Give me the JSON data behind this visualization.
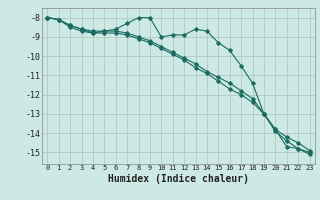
{
  "xlabel": "Humidex (Indice chaleur)",
  "ylabel": "",
  "xlim": [
    -0.5,
    23.5
  ],
  "ylim": [
    -15.6,
    -7.5
  ],
  "yticks": [
    -8,
    -9,
    -10,
    -11,
    -12,
    -13,
    -14,
    -15
  ],
  "xticks": [
    0,
    1,
    2,
    3,
    4,
    5,
    6,
    7,
    8,
    9,
    10,
    11,
    12,
    13,
    14,
    15,
    16,
    17,
    18,
    19,
    20,
    21,
    22,
    23
  ],
  "bg_color": "#cce9e4",
  "grid_color": "#b0c8c4",
  "line_color": "#1a6b60",
  "line1_x": [
    0,
    1,
    2,
    3,
    4,
    5,
    6,
    7,
    8,
    9,
    10,
    11,
    12,
    13,
    14,
    15,
    16,
    17,
    18,
    19,
    20,
    21,
    22,
    23
  ],
  "line1_y": [
    -8.0,
    -8.1,
    -8.5,
    -8.7,
    -8.8,
    -8.7,
    -8.6,
    -8.3,
    -8.0,
    -8.0,
    -9.0,
    -8.9,
    -8.9,
    -8.6,
    -8.7,
    -9.3,
    -9.7,
    -10.5,
    -11.4,
    -13.0,
    -13.8,
    -14.7,
    -14.8,
    -15.0
  ],
  "line2_x": [
    0,
    1,
    2,
    3,
    4,
    5,
    6,
    7,
    8,
    9,
    10,
    11,
    12,
    13,
    14,
    15,
    16,
    17,
    18,
    19,
    20,
    21,
    22,
    23
  ],
  "line2_y": [
    -8.0,
    -8.1,
    -8.4,
    -8.6,
    -8.7,
    -8.7,
    -8.7,
    -8.8,
    -9.0,
    -9.2,
    -9.5,
    -9.8,
    -10.1,
    -10.4,
    -10.8,
    -11.1,
    -11.4,
    -11.8,
    -12.2,
    -13.0,
    -13.8,
    -14.2,
    -14.5,
    -14.9
  ],
  "line3_x": [
    0,
    1,
    2,
    3,
    4,
    5,
    6,
    7,
    8,
    9,
    10,
    11,
    12,
    13,
    14,
    15,
    16,
    17,
    18,
    19,
    20,
    21,
    22,
    23
  ],
  "line3_y": [
    -8.0,
    -8.1,
    -8.4,
    -8.6,
    -8.8,
    -8.8,
    -8.8,
    -8.9,
    -9.1,
    -9.3,
    -9.6,
    -9.9,
    -10.2,
    -10.6,
    -10.9,
    -11.3,
    -11.7,
    -12.0,
    -12.4,
    -13.0,
    -13.9,
    -14.4,
    -14.8,
    -15.1
  ],
  "font_size_ytick": 6,
  "font_size_xtick": 5,
  "font_size_xlabel": 7
}
